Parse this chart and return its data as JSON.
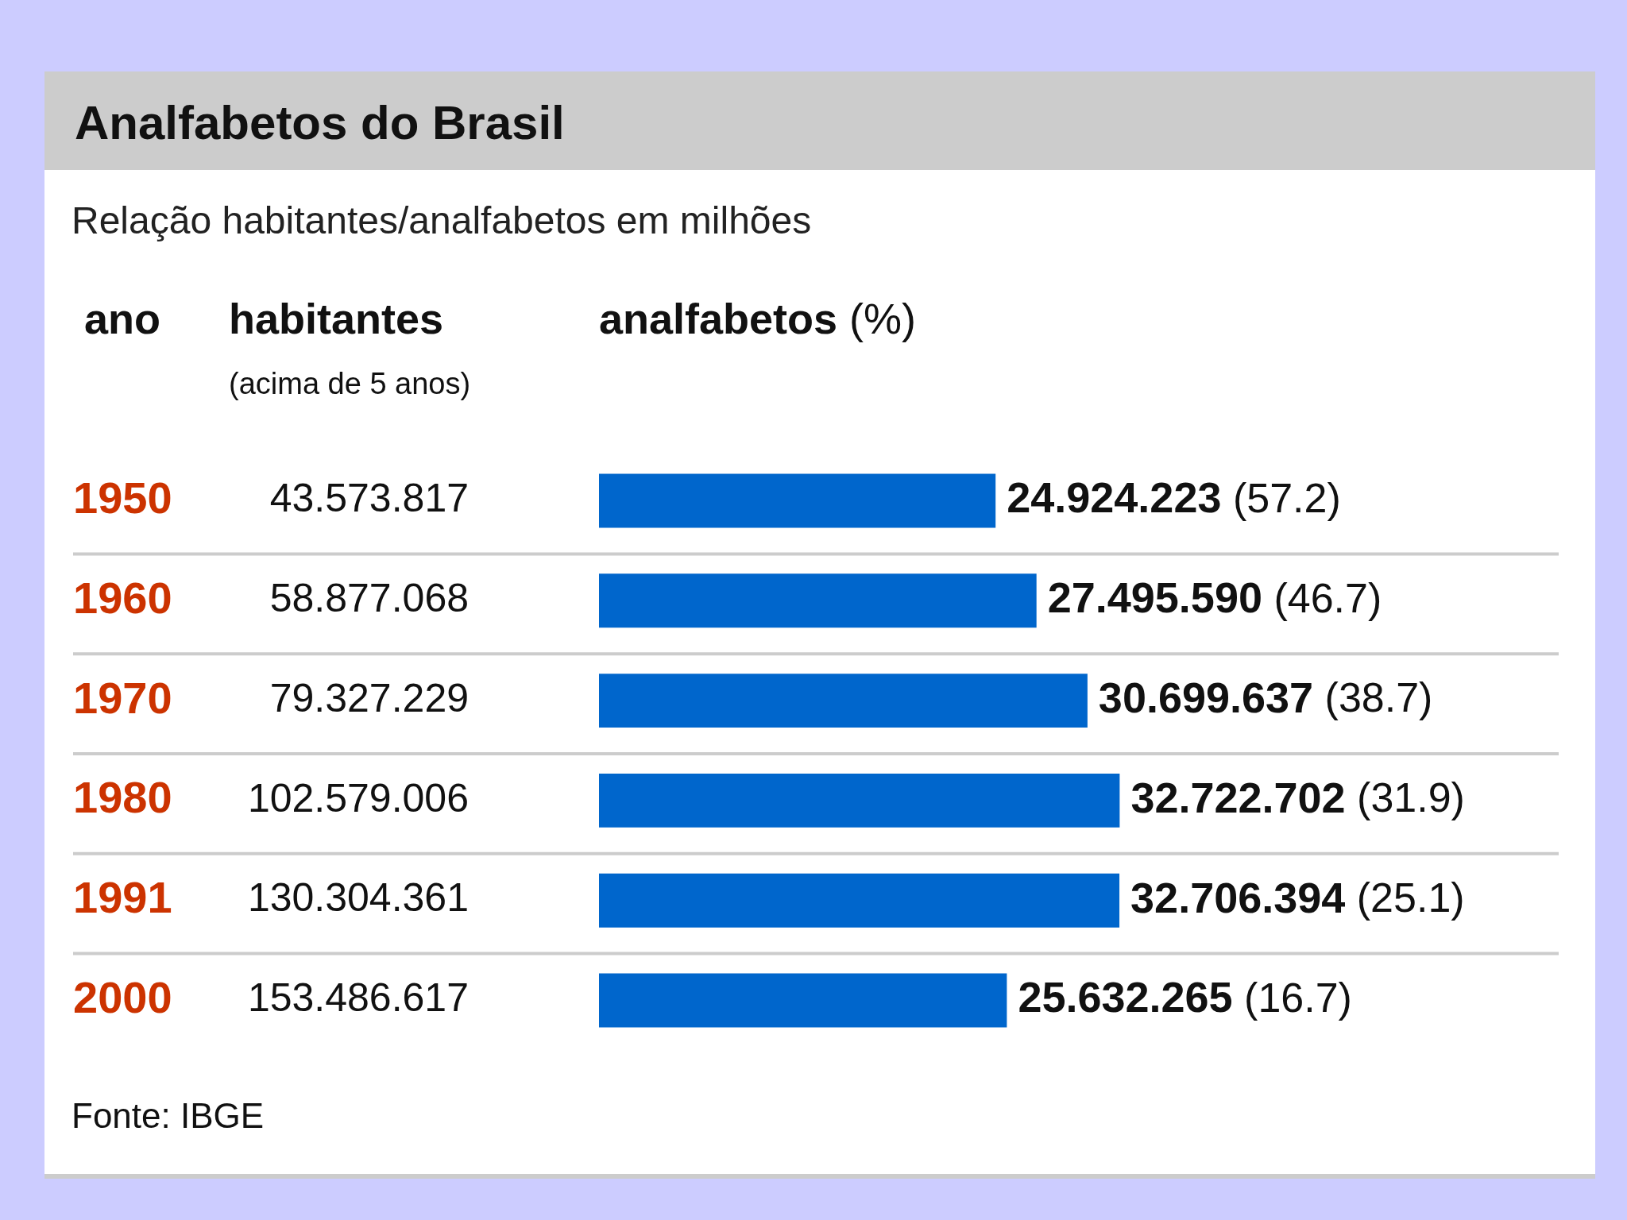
{
  "chart_data": {
    "type": "bar",
    "orientation": "horizontal",
    "title": "Analfabetos do Brasil",
    "subtitle": "Relação habitantes/analfabetos em milhões",
    "categories": [
      "1950",
      "1960",
      "1970",
      "1980",
      "1991",
      "2000"
    ],
    "series": [
      {
        "color": "#0066cc",
        "values": [
          24924223,
          27495590,
          30699637,
          32722702,
          32706394,
          25632265
        ],
        "value_labels": [
          "24.924.223 (57.2)",
          "27.495.590 (46.7)",
          "30.699.637 (38.7)",
          "32.722.702 (31.9)",
          "32.706.394 (25.1)",
          "25.632.265 (16.7)"
        ]
      }
    ],
    "annotations": [
      "ano",
      "habitantes",
      "(acima de 5 anos)",
      "analfabetos (%)",
      "43.573.817",
      "58.877.068",
      "79.327.229",
      "102.579.006",
      "130.304.361",
      "153.486.617",
      "Fonte: IBGE"
    ],
    "grid": "y",
    "legend": false,
    "tick_labels": "y"
  }
}
